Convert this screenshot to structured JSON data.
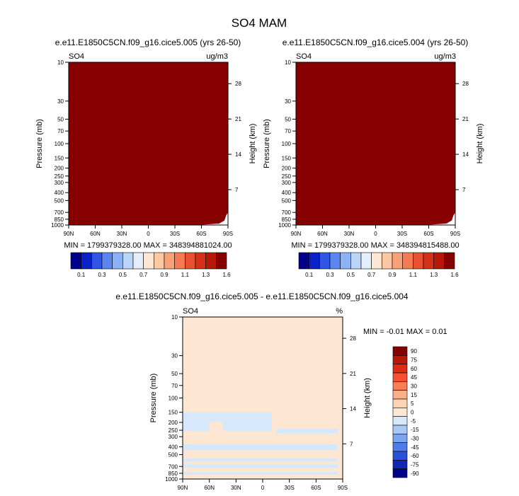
{
  "page_title": "SO4 MAM",
  "colors": {
    "field_fill": "#870000",
    "diff_background": "#fde6d2",
    "diff_negative": "#d6e8fb",
    "frame": "#000000"
  },
  "colorbar_main": {
    "labels": [
      "0.1",
      "0.3",
      "0.5",
      "0.7",
      "0.9",
      "1.1",
      "1.3",
      "1.6"
    ],
    "colors": [
      "#00008b",
      "#0a20c8",
      "#2e55e6",
      "#5b86f0",
      "#8db1f5",
      "#bcd4f8",
      "#e4eefb",
      "#fde6d2",
      "#fcc7a3",
      "#f9a27a",
      "#f47a53",
      "#e9502f",
      "#d6301a",
      "#b81808",
      "#870000"
    ]
  },
  "colorbar_diff": {
    "labels": [
      "90",
      "75",
      "60",
      "45",
      "30",
      "15",
      "5",
      "0",
      "-5",
      "-15",
      "-30",
      "-45",
      "-60",
      "-75",
      "-90"
    ],
    "colors": [
      "#870000",
      "#b81808",
      "#e02a12",
      "#f5502f",
      "#f97d55",
      "#fbae87",
      "#fcd3b3",
      "#fde6d2",
      "#d6e8fb",
      "#a9c8f6",
      "#7aa5f0",
      "#4d7de8",
      "#2852d6",
      "#1028b0",
      "#00008b"
    ]
  },
  "panels": [
    {
      "title": "e.e11.E1850C5CN.f09_g16.cice5.005 (yrs 26-50)",
      "var_label": "SO4",
      "units": "ug/m3",
      "min_max": "MIN = 1799379328.00   MAX = 348394881024.00"
    },
    {
      "title": "e.e11.E1850C5CN.f09_g16.cice5.004 (yrs 26-50)",
      "var_label": "SO4",
      "units": "ug/m3",
      "min_max": "MIN = 1799379328.00   MAX = 348394815488.00"
    },
    {
      "title": "e.e11.E1850C5CN.f09_g16.cice5.005 - e.e11.E1850C5CN.f09_g16.cice5.004",
      "var_label": "SO4",
      "units": "%",
      "min_max": "MIN =  -0.01  MAX =   0.01"
    }
  ],
  "chart_data": [
    {
      "type": "heatmap",
      "title": "e.e11.E1850C5CN.f09_g16.cice5.005 (yrs 26-50)",
      "xlabel": "",
      "ylabel": "Pressure (mb)",
      "y2label": "Height (km)",
      "x_ticks": [
        "90N",
        "60N",
        "30N",
        "0",
        "30S",
        "60S",
        "90S"
      ],
      "y_ticks": [
        "10",
        "30",
        "50",
        "70",
        "100",
        "150",
        "200",
        "250",
        "300",
        "400",
        "500",
        "700",
        "850",
        "1000"
      ],
      "y2_ticks": [
        "28",
        "21",
        "14",
        "7"
      ],
      "ylim": [
        1000,
        10
      ],
      "y_scale": "log",
      "min": 1799379328.0,
      "max": 348394881024.0,
      "dominant_level": "1.6"
    },
    {
      "type": "heatmap",
      "title": "e.e11.E1850C5CN.f09_g16.cice5.004 (yrs 26-50)",
      "xlabel": "",
      "ylabel": "Pressure (mb)",
      "y2label": "Height (km)",
      "x_ticks": [
        "90N",
        "60N",
        "30N",
        "0",
        "30S",
        "60S",
        "90S"
      ],
      "y_ticks": [
        "10",
        "30",
        "50",
        "70",
        "100",
        "150",
        "200",
        "250",
        "300",
        "400",
        "500",
        "700",
        "850",
        "1000"
      ],
      "y2_ticks": [
        "28",
        "21",
        "14",
        "7"
      ],
      "ylim": [
        1000,
        10
      ],
      "y_scale": "log",
      "min": 1799379328.0,
      "max": 348394815488.0,
      "dominant_level": "1.6"
    },
    {
      "type": "heatmap",
      "title": "e.e11.E1850C5CN.f09_g16.cice5.005 - e.e11.E1850C5CN.f09_g16.cice5.004",
      "xlabel": "",
      "ylabel": "Pressure (mb)",
      "y2label": "Height (km)",
      "x_ticks": [
        "90N",
        "60N",
        "30N",
        "0",
        "30S",
        "60S",
        "90S"
      ],
      "y_ticks": [
        "10",
        "30",
        "50",
        "70",
        "100",
        "150",
        "200",
        "250",
        "300",
        "400",
        "500",
        "700",
        "850",
        "1000"
      ],
      "y2_ticks": [
        "28",
        "21",
        "14",
        "7"
      ],
      "ylim": [
        1000,
        10
      ],
      "y_scale": "log",
      "min": -0.01,
      "max": 0.01,
      "dominant_level": "0",
      "negative_bands": [
        {
          "lat_from": 90,
          "lat_to": -10,
          "p_from": 150,
          "p_to": 195
        },
        {
          "lat_from": 90,
          "lat_to": 60,
          "p_from": 195,
          "p_to": 255
        },
        {
          "lat_from": 45,
          "lat_to": -10,
          "p_from": 195,
          "p_to": 255
        },
        {
          "lat_from": -15,
          "lat_to": -85,
          "p_from": 240,
          "p_to": 275
        },
        {
          "lat_from": 90,
          "lat_to": -85,
          "p_from": 370,
          "p_to": 440
        },
        {
          "lat_from": 90,
          "lat_to": -85,
          "p_from": 560,
          "p_to": 610
        },
        {
          "lat_from": 90,
          "lat_to": -85,
          "p_from": 660,
          "p_to": 730
        },
        {
          "lat_from": 90,
          "lat_to": -85,
          "p_from": 820,
          "p_to": 880
        }
      ]
    }
  ]
}
